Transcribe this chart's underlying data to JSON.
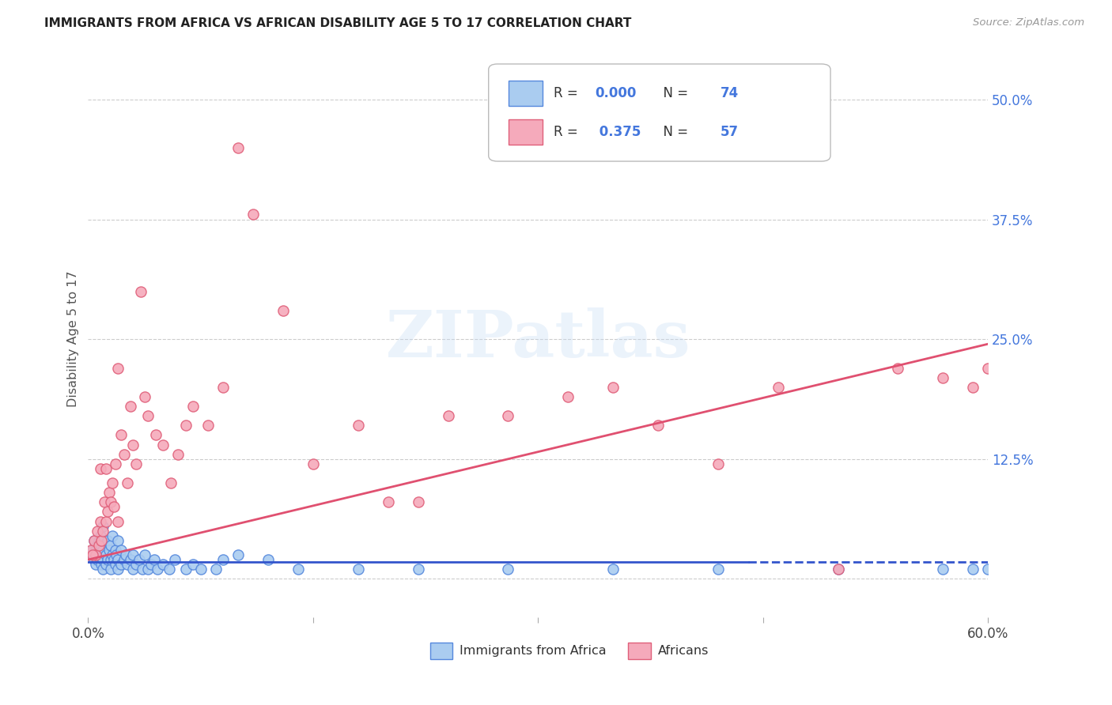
{
  "title": "IMMIGRANTS FROM AFRICA VS AFRICAN DISABILITY AGE 5 TO 17 CORRELATION CHART",
  "source": "Source: ZipAtlas.com",
  "ylabel": "Disability Age 5 to 17",
  "legend_label1": "Immigrants from Africa",
  "legend_label2": "Africans",
  "legend_r1": "0.000",
  "legend_n1": "74",
  "legend_r2": "0.375",
  "legend_n2": "57",
  "color_blue_fill": "#aaccf0",
  "color_pink_fill": "#f5aabb",
  "color_blue_edge": "#5588dd",
  "color_pink_edge": "#e0607a",
  "color_blue_line": "#3355cc",
  "color_pink_line": "#e05070",
  "color_blue_text": "#4477dd",
  "color_grid": "#cccccc",
  "xlim": [
    0.0,
    0.6
  ],
  "ylim": [
    -0.04,
    0.54
  ],
  "yticks": [
    0.0,
    0.125,
    0.25,
    0.375,
    0.5
  ],
  "ytick_labels": [
    "",
    "12.5%",
    "25.0%",
    "37.5%",
    "50.0%"
  ],
  "blue_scatter_x": [
    0.002,
    0.003,
    0.004,
    0.004,
    0.005,
    0.005,
    0.006,
    0.006,
    0.007,
    0.007,
    0.008,
    0.008,
    0.008,
    0.009,
    0.009,
    0.009,
    0.01,
    0.01,
    0.01,
    0.01,
    0.01,
    0.012,
    0.012,
    0.013,
    0.013,
    0.014,
    0.015,
    0.015,
    0.015,
    0.016,
    0.016,
    0.017,
    0.018,
    0.018,
    0.019,
    0.02,
    0.02,
    0.02,
    0.022,
    0.022,
    0.024,
    0.025,
    0.026,
    0.028,
    0.03,
    0.03,
    0.032,
    0.034,
    0.036,
    0.038,
    0.04,
    0.042,
    0.044,
    0.046,
    0.05,
    0.054,
    0.058,
    0.065,
    0.07,
    0.075,
    0.085,
    0.09,
    0.1,
    0.12,
    0.14,
    0.18,
    0.22,
    0.28,
    0.35,
    0.42,
    0.5,
    0.57,
    0.59,
    0.6
  ],
  "blue_scatter_y": [
    0.025,
    0.03,
    0.02,
    0.04,
    0.015,
    0.03,
    0.02,
    0.035,
    0.025,
    0.04,
    0.02,
    0.03,
    0.045,
    0.015,
    0.025,
    0.035,
    0.01,
    0.02,
    0.03,
    0.04,
    0.055,
    0.015,
    0.025,
    0.02,
    0.04,
    0.03,
    0.01,
    0.02,
    0.035,
    0.025,
    0.045,
    0.02,
    0.015,
    0.03,
    0.025,
    0.01,
    0.02,
    0.04,
    0.015,
    0.03,
    0.02,
    0.025,
    0.015,
    0.02,
    0.01,
    0.025,
    0.015,
    0.02,
    0.01,
    0.025,
    0.01,
    0.015,
    0.02,
    0.01,
    0.015,
    0.01,
    0.02,
    0.01,
    0.015,
    0.01,
    0.01,
    0.02,
    0.025,
    0.02,
    0.01,
    0.01,
    0.01,
    0.01,
    0.01,
    0.01,
    0.01,
    0.01,
    0.01,
    0.01
  ],
  "pink_scatter_x": [
    0.002,
    0.004,
    0.005,
    0.006,
    0.007,
    0.008,
    0.009,
    0.01,
    0.011,
    0.012,
    0.013,
    0.014,
    0.015,
    0.016,
    0.017,
    0.018,
    0.02,
    0.022,
    0.024,
    0.026,
    0.028,
    0.03,
    0.032,
    0.035,
    0.038,
    0.04,
    0.045,
    0.05,
    0.055,
    0.06,
    0.065,
    0.07,
    0.08,
    0.09,
    0.1,
    0.11,
    0.13,
    0.15,
    0.18,
    0.2,
    0.22,
    0.24,
    0.28,
    0.32,
    0.35,
    0.38,
    0.42,
    0.46,
    0.5,
    0.54,
    0.57,
    0.59,
    0.6,
    0.003,
    0.008,
    0.012,
    0.02
  ],
  "pink_scatter_y": [
    0.03,
    0.04,
    0.025,
    0.05,
    0.035,
    0.06,
    0.04,
    0.05,
    0.08,
    0.06,
    0.07,
    0.09,
    0.08,
    0.1,
    0.075,
    0.12,
    0.22,
    0.15,
    0.13,
    0.1,
    0.18,
    0.14,
    0.12,
    0.3,
    0.19,
    0.17,
    0.15,
    0.14,
    0.1,
    0.13,
    0.16,
    0.18,
    0.16,
    0.2,
    0.45,
    0.38,
    0.28,
    0.12,
    0.16,
    0.08,
    0.08,
    0.17,
    0.17,
    0.19,
    0.2,
    0.16,
    0.12,
    0.2,
    0.01,
    0.22,
    0.21,
    0.2,
    0.22,
    0.025,
    0.115,
    0.115,
    0.06
  ],
  "blue_line_solid_end": 0.44,
  "blue_line_y": 0.018,
  "pink_line_x0": 0.0,
  "pink_line_x1": 0.6,
  "pink_line_y0": 0.02,
  "pink_line_y1": 0.245,
  "watermark_text": "ZIPatlas",
  "background_color": "#ffffff"
}
